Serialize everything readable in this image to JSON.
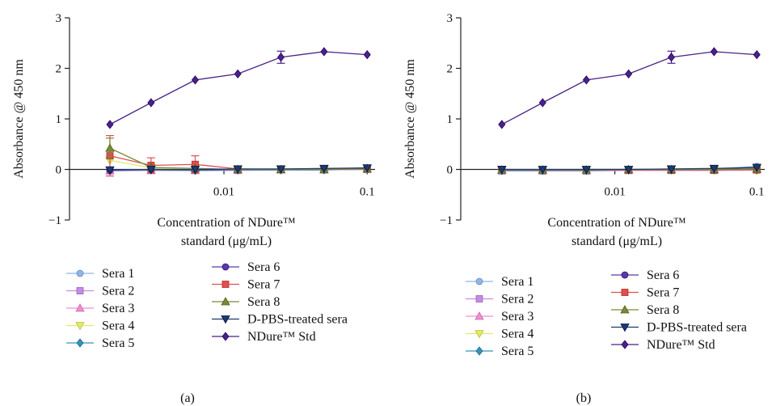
{
  "figure": {
    "panel_labels": [
      "(a)",
      "(b)"
    ]
  },
  "chart_data": [
    {
      "type": "line",
      "panel": "(a)",
      "ylabel": "Absorbance @ 450 nm",
      "xlabel_line1": "Concentration of NDure™",
      "xlabel_line2": "standard (μg/mL)",
      "xscale": "log",
      "xlim": [
        0.0013,
        0.105
      ],
      "ylim": [
        -1,
        3
      ],
      "yticks": [
        -1,
        0,
        1,
        2,
        3
      ],
      "xticks": [
        0.01,
        0.1
      ],
      "xtick_labels": [
        "0.01",
        "0.1"
      ],
      "x": [
        0.0016,
        0.0031,
        0.0063,
        0.0125,
        0.025,
        0.05,
        0.1
      ],
      "grid": false,
      "legend_position": "below",
      "series": [
        {
          "name": "Sera 1",
          "color": "#8fb6e6",
          "marker": "circle",
          "values": [
            -0.02,
            -0.01,
            -0.01,
            0.0,
            0.0,
            0.0,
            0.03
          ],
          "err": [
            0,
            0,
            0,
            0,
            0,
            0,
            0
          ]
        },
        {
          "name": "Sera 2",
          "color": "#c58be0",
          "marker": "square",
          "values": [
            -0.03,
            -0.02,
            -0.02,
            -0.02,
            -0.01,
            -0.01,
            0.0
          ],
          "err": [
            0,
            0,
            0,
            0,
            0,
            0,
            0
          ]
        },
        {
          "name": "Sera 3",
          "color": "#f08fd0",
          "marker": "triangle-up",
          "values": [
            -0.02,
            -0.02,
            -0.02,
            -0.01,
            -0.01,
            -0.01,
            0.01
          ],
          "err": [
            0,
            0,
            0,
            0,
            0,
            0,
            0
          ]
        },
        {
          "name": "Sera 4",
          "color": "#e2ea6a",
          "marker": "triangle-down",
          "values": [
            0.18,
            0.03,
            0.0,
            -0.01,
            0.0,
            0.0,
            0.02
          ],
          "err": [
            0,
            0,
            0,
            0,
            0,
            0,
            0
          ]
        },
        {
          "name": "Sera 5",
          "color": "#3a93b6",
          "marker": "diamond",
          "values": [
            -0.02,
            -0.01,
            -0.02,
            -0.01,
            -0.01,
            -0.01,
            0.02
          ],
          "err": [
            0,
            0,
            0,
            0,
            0,
            0,
            0
          ]
        },
        {
          "name": "Sera 6",
          "color": "#5b3aa8",
          "marker": "circle",
          "values": [
            -0.01,
            0.0,
            -0.01,
            0.0,
            0.0,
            0.01,
            0.03
          ],
          "err": [
            0,
            0,
            0,
            0,
            0,
            0,
            0
          ]
        },
        {
          "name": "Sera 7",
          "color": "#e0504f",
          "marker": "square",
          "values": [
            0.27,
            0.08,
            0.1,
            0.01,
            0.0,
            0.0,
            0.01
          ],
          "err": [
            0.4,
            0.15,
            0.17,
            0,
            0,
            0,
            0
          ]
        },
        {
          "name": "Sera 8",
          "color": "#7a8a3a",
          "marker": "triangle-up",
          "values": [
            0.42,
            0.04,
            0.02,
            0.0,
            0.0,
            0.0,
            0.01
          ],
          "err": [
            0.2,
            0,
            0,
            0,
            0,
            0,
            0
          ]
        },
        {
          "name": "D-PBS-treated sera",
          "color": "#1e3a6e",
          "marker": "triangle-down",
          "values": [
            -0.01,
            0.0,
            0.0,
            0.01,
            0.01,
            0.02,
            0.03
          ],
          "err": [
            0,
            0,
            0,
            0,
            0,
            0,
            0
          ]
        },
        {
          "name": "NDure™ Std",
          "color": "#4a2288",
          "marker": "diamond",
          "values": [
            0.89,
            1.32,
            1.77,
            1.89,
            2.22,
            2.33,
            2.27
          ],
          "err": [
            0,
            0,
            0,
            0,
            0.12,
            0,
            0
          ]
        }
      ]
    },
    {
      "type": "line",
      "panel": "(b)",
      "ylabel": "Absorbance @ 450 nm",
      "xlabel_line1": "Concentration of NDure™",
      "xlabel_line2": "standard (μg/mL)",
      "xscale": "log",
      "xlim": [
        0.0013,
        0.105
      ],
      "ylim": [
        -1,
        3
      ],
      "yticks": [
        -1,
        0,
        1,
        2,
        3
      ],
      "xticks": [
        0.01,
        0.1
      ],
      "xtick_labels": [
        "0.01",
        "0.1"
      ],
      "x": [
        0.0016,
        0.0031,
        0.0063,
        0.0125,
        0.025,
        0.05,
        0.1
      ],
      "grid": false,
      "legend_position": "below",
      "series": [
        {
          "name": "Sera 1",
          "color": "#8fb6e6",
          "marker": "circle",
          "values": [
            -0.01,
            -0.01,
            -0.01,
            0.0,
            0.0,
            0.01,
            0.06
          ],
          "err": [
            0,
            0,
            0,
            0,
            0,
            0,
            0
          ]
        },
        {
          "name": "Sera 2",
          "color": "#c58be0",
          "marker": "square",
          "values": [
            -0.03,
            -0.03,
            -0.03,
            -0.02,
            -0.02,
            -0.02,
            -0.01
          ],
          "err": [
            0,
            0,
            0,
            0,
            0,
            0,
            0
          ]
        },
        {
          "name": "Sera 3",
          "color": "#f08fd0",
          "marker": "triangle-up",
          "values": [
            -0.02,
            -0.02,
            -0.02,
            -0.02,
            -0.01,
            -0.01,
            0.0
          ],
          "err": [
            0,
            0,
            0,
            0,
            0,
            0,
            0
          ]
        },
        {
          "name": "Sera 4",
          "color": "#e2ea6a",
          "marker": "triangle-down",
          "values": [
            -0.01,
            -0.01,
            -0.01,
            -0.01,
            0.0,
            0.0,
            0.01
          ],
          "err": [
            0,
            0,
            0,
            0,
            0,
            0,
            0
          ]
        },
        {
          "name": "Sera 5",
          "color": "#3a93b6",
          "marker": "diamond",
          "values": [
            -0.02,
            -0.02,
            -0.02,
            -0.01,
            -0.01,
            -0.01,
            0.02
          ],
          "err": [
            0,
            0,
            0,
            0,
            0,
            0,
            0
          ]
        },
        {
          "name": "Sera 6",
          "color": "#5b3aa8",
          "marker": "circle",
          "values": [
            -0.01,
            -0.01,
            0.0,
            0.0,
            0.0,
            0.01,
            0.04
          ],
          "err": [
            0,
            0,
            0,
            0,
            0,
            0,
            0
          ]
        },
        {
          "name": "Sera 7",
          "color": "#e0504f",
          "marker": "square",
          "values": [
            0.0,
            -0.01,
            -0.01,
            -0.01,
            -0.01,
            -0.01,
            -0.01
          ],
          "err": [
            0,
            0,
            0,
            0,
            0,
            0,
            0
          ]
        },
        {
          "name": "Sera 8",
          "color": "#7a8a3a",
          "marker": "triangle-up",
          "values": [
            -0.01,
            -0.01,
            -0.01,
            0.0,
            0.0,
            0.0,
            0.01
          ],
          "err": [
            0,
            0,
            0,
            0,
            0,
            0,
            0
          ]
        },
        {
          "name": "D-PBS-treated sera",
          "color": "#1e3a6e",
          "marker": "triangle-down",
          "values": [
            0.0,
            0.0,
            0.0,
            0.0,
            0.01,
            0.02,
            0.04
          ],
          "err": [
            0,
            0,
            0,
            0,
            0,
            0,
            0
          ]
        },
        {
          "name": "NDure™ Std",
          "color": "#4a2288",
          "marker": "diamond",
          "values": [
            0.89,
            1.32,
            1.77,
            1.89,
            2.22,
            2.33,
            2.27
          ],
          "err": [
            0,
            0,
            0,
            0,
            0.12,
            0,
            0
          ]
        }
      ]
    }
  ]
}
